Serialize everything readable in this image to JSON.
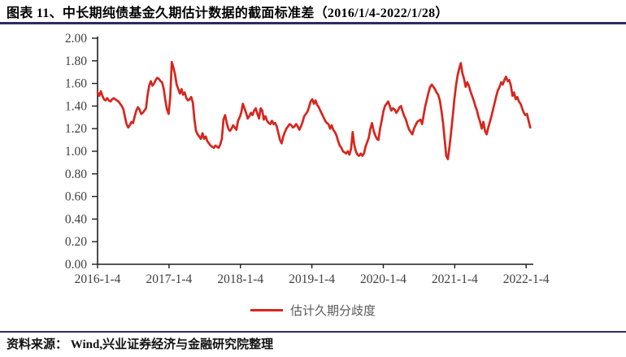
{
  "page": {
    "title": "图表 11、中长期纯债基金久期估计数据的截面标准差（2016/1/4-2022/1/28）",
    "source_note": "资料来源： Wind,兴业证券经济与金融研究院整理"
  },
  "colors": {
    "series_red": "#D7251D",
    "rule_navy": "#2E2C63",
    "axis": "#1f1f1f",
    "tick_label": "#404040",
    "legend_text": "#595959"
  },
  "legend": {
    "label": "估计久期分歧度"
  },
  "chart_data": {
    "type": "line",
    "title": "中长期纯债基金久期估计数据的截面标准差",
    "xlabel": "",
    "ylabel": "",
    "grid": false,
    "legend_position": "bottom",
    "ylim": [
      0.0,
      2.0
    ],
    "xlim": [
      2016.0,
      2022.1
    ],
    "y_ticks": [
      "0.00",
      "0.20",
      "0.40",
      "0.60",
      "0.80",
      "1.00",
      "1.20",
      "1.40",
      "1.60",
      "1.80",
      "2.00"
    ],
    "y_tick_values": [
      0.0,
      0.2,
      0.4,
      0.6,
      0.8,
      1.0,
      1.2,
      1.4,
      1.6,
      1.8,
      2.0
    ],
    "x_ticks": [
      "2016-1-4",
      "2017-1-4",
      "2018-1-4",
      "2019-1-4",
      "2020-1-4",
      "2021-1-4",
      "2022-1-4"
    ],
    "x_tick_values": [
      2016,
      2017,
      2018,
      2019,
      2020,
      2021,
      2022
    ],
    "series": [
      {
        "name": "估计久期分歧度",
        "x_start": 2016.0,
        "x_step_years": 0.0226,
        "values": [
          1.52,
          1.49,
          1.53,
          1.49,
          1.46,
          1.45,
          1.47,
          1.45,
          1.44,
          1.46,
          1.47,
          1.46,
          1.45,
          1.44,
          1.42,
          1.4,
          1.37,
          1.3,
          1.24,
          1.21,
          1.23,
          1.26,
          1.25,
          1.31,
          1.36,
          1.39,
          1.37,
          1.33,
          1.34,
          1.36,
          1.38,
          1.5,
          1.58,
          1.62,
          1.58,
          1.6,
          1.63,
          1.65,
          1.64,
          1.62,
          1.61,
          1.55,
          1.45,
          1.37,
          1.33,
          1.48,
          1.79,
          1.74,
          1.68,
          1.59,
          1.55,
          1.51,
          1.55,
          1.5,
          1.52,
          1.47,
          1.45,
          1.46,
          1.48,
          1.43,
          1.28,
          1.18,
          1.15,
          1.13,
          1.11,
          1.16,
          1.11,
          1.13,
          1.09,
          1.07,
          1.05,
          1.04,
          1.03,
          1.05,
          1.04,
          1.03,
          1.06,
          1.11,
          1.28,
          1.32,
          1.25,
          1.2,
          1.18,
          1.2,
          1.23,
          1.21,
          1.19,
          1.27,
          1.3,
          1.34,
          1.42,
          1.38,
          1.34,
          1.29,
          1.31,
          1.34,
          1.32,
          1.36,
          1.38,
          1.33,
          1.29,
          1.38,
          1.36,
          1.28,
          1.31,
          1.27,
          1.25,
          1.24,
          1.27,
          1.24,
          1.25,
          1.22,
          1.16,
          1.1,
          1.07,
          1.13,
          1.17,
          1.2,
          1.22,
          1.24,
          1.23,
          1.21,
          1.22,
          1.24,
          1.22,
          1.19,
          1.22,
          1.26,
          1.31,
          1.33,
          1.35,
          1.39,
          1.44,
          1.46,
          1.42,
          1.45,
          1.41,
          1.39,
          1.36,
          1.33,
          1.3,
          1.27,
          1.25,
          1.24,
          1.2,
          1.23,
          1.19,
          1.17,
          1.14,
          1.09,
          1.05,
          1.03,
          1.0,
          0.99,
          0.98,
          1.0,
          0.97,
          1.02,
          1.17,
          1.06,
          1.0,
          0.97,
          0.96,
          0.98,
          0.96,
          0.98,
          1.04,
          1.08,
          1.12,
          1.2,
          1.25,
          1.18,
          1.14,
          1.11,
          1.1,
          1.2,
          1.27,
          1.35,
          1.4,
          1.42,
          1.44,
          1.4,
          1.36,
          1.38,
          1.37,
          1.34,
          1.36,
          1.39,
          1.4,
          1.35,
          1.31,
          1.28,
          1.23,
          1.19,
          1.17,
          1.15,
          1.2,
          1.23,
          1.26,
          1.27,
          1.28,
          1.24,
          1.32,
          1.4,
          1.46,
          1.52,
          1.57,
          1.59,
          1.57,
          1.55,
          1.52,
          1.5,
          1.45,
          1.36,
          1.25,
          1.1,
          0.96,
          0.93,
          1.04,
          1.17,
          1.31,
          1.46,
          1.58,
          1.67,
          1.73,
          1.78,
          1.69,
          1.64,
          1.57,
          1.61,
          1.58,
          1.53,
          1.49,
          1.45,
          1.4,
          1.36,
          1.3,
          1.26,
          1.2,
          1.26,
          1.18,
          1.15,
          1.21,
          1.26,
          1.31,
          1.37,
          1.43,
          1.49,
          1.54,
          1.57,
          1.61,
          1.59,
          1.63,
          1.66,
          1.62,
          1.63,
          1.58,
          1.49,
          1.52,
          1.46,
          1.48,
          1.44,
          1.42,
          1.38,
          1.34,
          1.32,
          1.33,
          1.27,
          1.21
        ]
      }
    ]
  }
}
